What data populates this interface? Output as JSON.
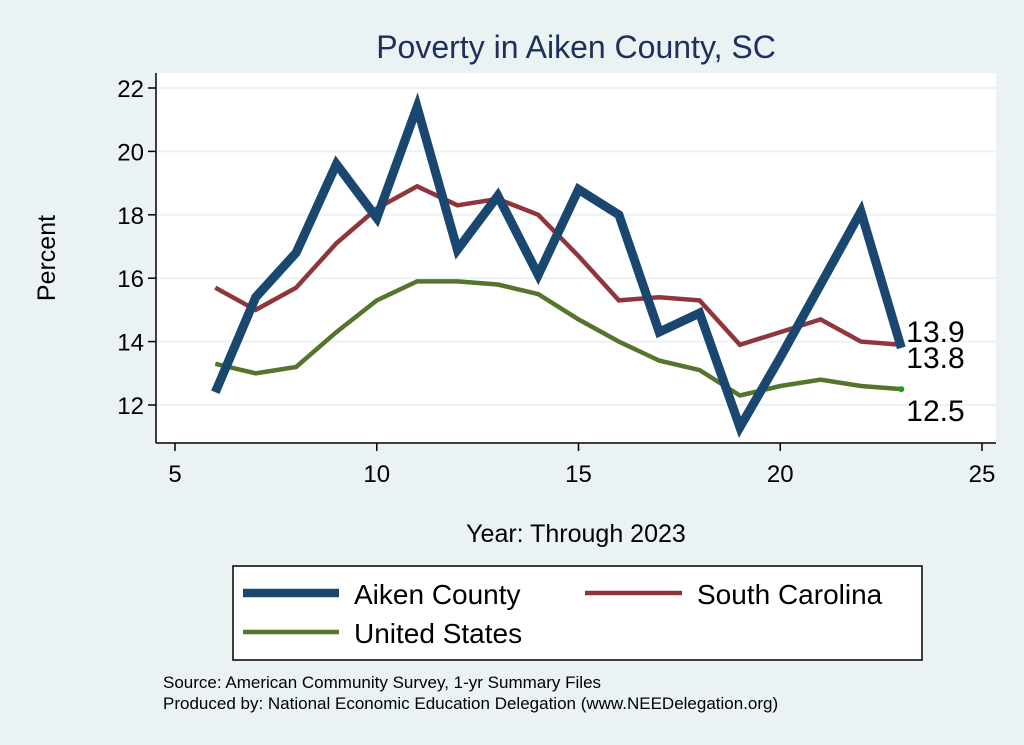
{
  "chart_data": {
    "type": "line",
    "title": "Poverty in Aiken County, SC",
    "xlabel": "Year: Through 2023",
    "ylabel": "Percent",
    "xlim": [
      5,
      25
    ],
    "ylim": [
      10.8,
      22.5
    ],
    "x_ticks": [
      5,
      10,
      15,
      20,
      25
    ],
    "y_ticks": [
      12,
      14,
      16,
      18,
      20,
      22
    ],
    "grid": true,
    "x": [
      6,
      7,
      8,
      9,
      10,
      11,
      12,
      13,
      14,
      15,
      16,
      17,
      18,
      19,
      20,
      21,
      22,
      23
    ],
    "series": [
      {
        "name": "Aiken County",
        "color": "#1a476f",
        "values": [
          12.4,
          15.4,
          16.8,
          19.6,
          17.9,
          21.4,
          16.9,
          18.6,
          16.1,
          18.8,
          18.0,
          14.3,
          14.9,
          11.3,
          13.5,
          15.8,
          18.1,
          13.8
        ],
        "end_label": "13.8"
      },
      {
        "name": "South Carolina",
        "color": "#90353b",
        "values": [
          15.7,
          15.0,
          15.7,
          17.1,
          18.2,
          18.9,
          18.3,
          18.5,
          18.0,
          16.7,
          15.3,
          15.4,
          15.3,
          13.9,
          14.3,
          14.7,
          14.0,
          13.9
        ],
        "end_label": "13.9"
      },
      {
        "name": "United States",
        "color": "#55752f",
        "values": [
          13.3,
          13.0,
          13.2,
          14.3,
          15.3,
          15.9,
          15.9,
          15.8,
          15.5,
          14.7,
          14.0,
          13.4,
          13.1,
          12.3,
          12.6,
          12.8,
          12.6,
          12.5
        ],
        "end_label": "12.5"
      }
    ]
  },
  "footer": {
    "source": "Source: American Community Survey, 1-yr Summary Files",
    "produced": "Produced by: National Economic Education Delegation (www.NEEDelegation.org)"
  }
}
